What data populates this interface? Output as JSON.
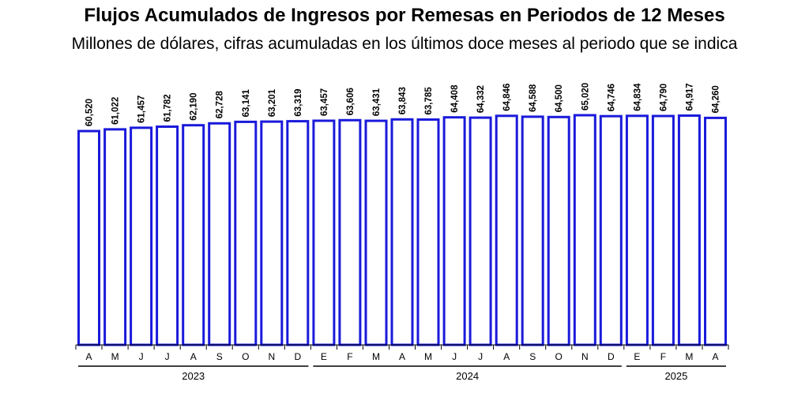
{
  "title": "Flujos Acumulados de Ingresos por Remesas en Periodos de 12 Meses",
  "subtitle": "Millones de dólares, cifras acumuladas en los últimos doce meses al periodo que se indica",
  "colors": {
    "bar_stroke": "#1a1adb",
    "bar_fill": "#ffffff",
    "axis": "#000000"
  },
  "chart_data": {
    "type": "bar",
    "title": "Flujos Acumulados de Ingresos por Remesas en Periodos de 12 Meses",
    "subtitle": "Millones de dólares, cifras acumuladas en los últimos doce meses al periodo que se indica",
    "categories": [
      "A",
      "M",
      "J",
      "J",
      "A",
      "S",
      "O",
      "N",
      "D",
      "E",
      "F",
      "M",
      "A",
      "M",
      "J",
      "J",
      "A",
      "S",
      "O",
      "N",
      "D",
      "E",
      "F",
      "M",
      "A"
    ],
    "values": [
      60520,
      61022,
      61457,
      61782,
      62190,
      62728,
      63141,
      63201,
      63319,
      63457,
      63606,
      63431,
      63843,
      63785,
      64408,
      64332,
      64846,
      64588,
      64500,
      65020,
      64746,
      64834,
      64790,
      64917,
      64260
    ],
    "value_labels": [
      "60,520",
      "61,022",
      "61,457",
      "61,782",
      "62,190",
      "62,728",
      "63,141",
      "63,201",
      "63,319",
      "63,457",
      "63,606",
      "63,431",
      "63,843",
      "63,785",
      "64,408",
      "64,332",
      "64,846",
      "64,588",
      "64,500",
      "65,020",
      "64,746",
      "64,834",
      "64,790",
      "64,917",
      "64,260"
    ],
    "year_groups": [
      {
        "label": "2023",
        "count": 9
      },
      {
        "label": "2024",
        "count": 12
      },
      {
        "label": "2025",
        "count": 4
      }
    ],
    "ylim": [
      0,
      65020
    ],
    "grid": false,
    "legend": "none",
    "xlabel": "",
    "ylabel": ""
  }
}
